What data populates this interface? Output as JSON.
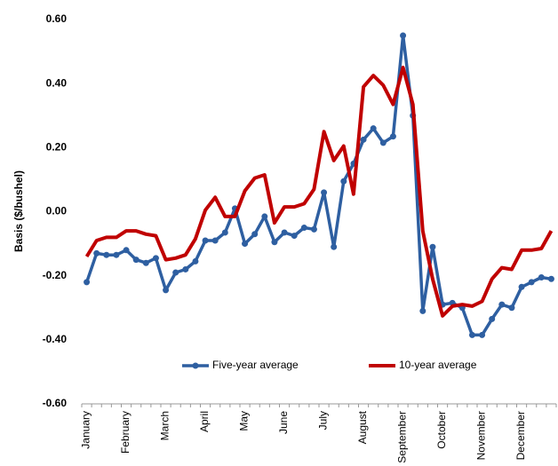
{
  "chart_data": {
    "type": "line",
    "y_label": "Basis ($/bushel)",
    "categories": [
      "January",
      null,
      null,
      null,
      "February",
      null,
      null,
      null,
      "March",
      null,
      null,
      null,
      "April",
      null,
      null,
      null,
      "May",
      null,
      null,
      null,
      "June",
      null,
      null,
      null,
      "July",
      null,
      null,
      null,
      "August",
      null,
      null,
      null,
      "September",
      null,
      null,
      null,
      "October",
      null,
      null,
      null,
      "November",
      null,
      null,
      null,
      "December",
      null,
      null,
      null
    ],
    "series": [
      {
        "name": "Five-year average",
        "color": "#2e5fa1",
        "marker": "circle",
        "values": [
          -0.22,
          -0.13,
          -0.135,
          -0.135,
          -0.12,
          -0.15,
          -0.16,
          -0.145,
          -0.245,
          -0.19,
          -0.18,
          -0.155,
          -0.09,
          -0.09,
          -0.065,
          0.01,
          -0.1,
          -0.07,
          -0.015,
          -0.095,
          -0.065,
          -0.075,
          -0.05,
          -0.055,
          0.06,
          -0.11,
          0.095,
          0.15,
          0.225,
          0.26,
          0.215,
          0.235,
          0.55,
          0.3,
          -0.31,
          -0.11,
          -0.29,
          -0.285,
          -0.3,
          -0.385,
          -0.385,
          -0.335,
          -0.29,
          -0.3,
          -0.235,
          -0.22,
          -0.205,
          -0.21
        ]
      },
      {
        "name": "10-year average",
        "color": "#c00000",
        "values": [
          -0.14,
          -0.09,
          -0.08,
          -0.08,
          -0.06,
          -0.06,
          -0.07,
          -0.075,
          -0.15,
          -0.145,
          -0.135,
          -0.085,
          0.005,
          0.045,
          -0.015,
          -0.015,
          0.065,
          0.105,
          0.115,
          -0.035,
          0.015,
          0.015,
          0.025,
          0.07,
          0.25,
          0.16,
          0.205,
          0.055,
          0.39,
          0.425,
          0.395,
          0.335,
          0.45,
          0.335,
          -0.06,
          -0.21,
          -0.325,
          -0.295,
          -0.29,
          -0.295,
          -0.28,
          -0.21,
          -0.175,
          -0.18,
          -0.12,
          -0.12,
          -0.115,
          -0.06
        ]
      }
    ],
    "ylim": [
      -0.6,
      0.6
    ],
    "yticks": [
      {
        "value": -0.6,
        "label": "-0.60"
      },
      {
        "value": -0.4,
        "label": "-0.40"
      },
      {
        "value": -0.2,
        "label": "-0.20"
      },
      {
        "value": 0,
        "label": "0.00"
      },
      {
        "value": 0.2,
        "label": "0.20"
      },
      {
        "value": 0.4,
        "label": "0.40"
      },
      {
        "value": 0.6,
        "label": "0.60"
      }
    ],
    "legend": "lower center"
  }
}
